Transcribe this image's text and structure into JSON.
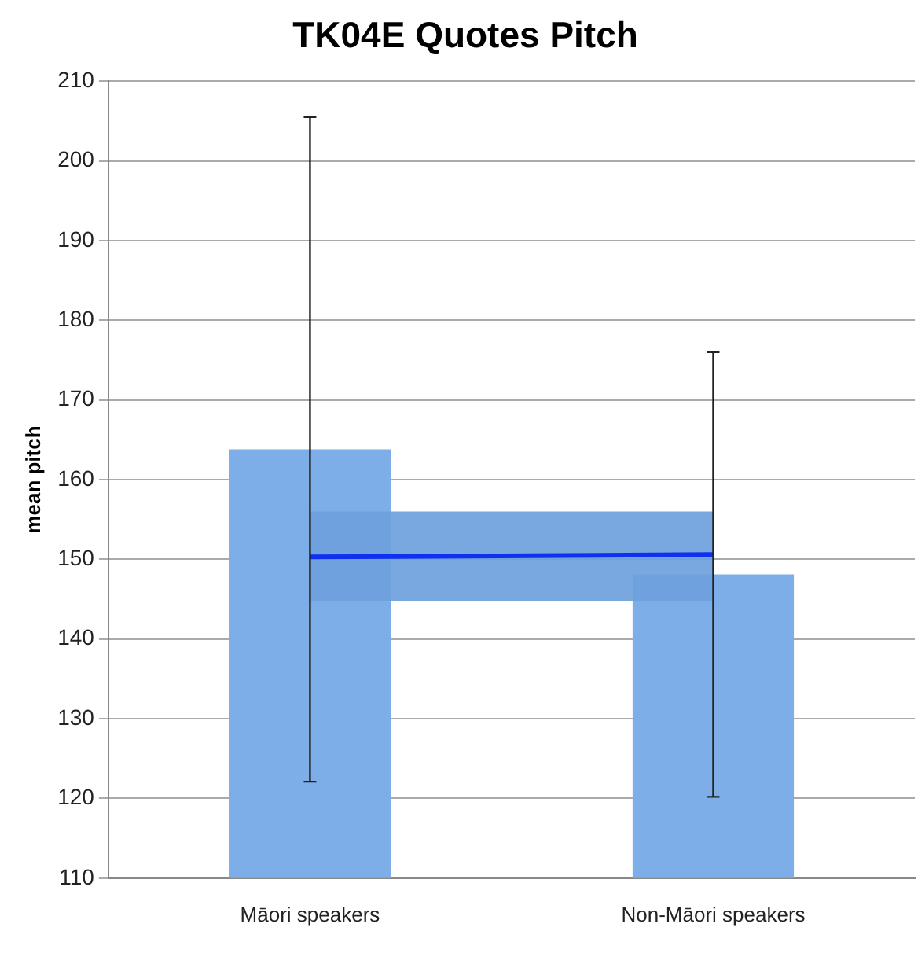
{
  "chart_data": {
    "type": "bar",
    "title": "TK04E Quotes Pitch",
    "ylabel": "mean pitch",
    "categories": [
      "Māori speakers",
      "Non-Māori speakers"
    ],
    "series": [
      {
        "color": "#7eaee8",
        "values": [
          163.8,
          148.1
        ],
        "errors": [
          41.7,
          27.9
        ]
      },
      {
        "type": "line",
        "color": "#1030f0",
        "values": [
          150.3,
          150.6
        ],
        "lower": [
          144.8,
          144.8
        ],
        "upper": [
          156,
          156
        ]
      }
    ],
    "ylim": [
      110,
      210
    ],
    "yticks": [
      110,
      120,
      130,
      140,
      150,
      160,
      170,
      180,
      190,
      200,
      210
    ],
    "grid": "y",
    "legend": false,
    "marker": "none"
  }
}
